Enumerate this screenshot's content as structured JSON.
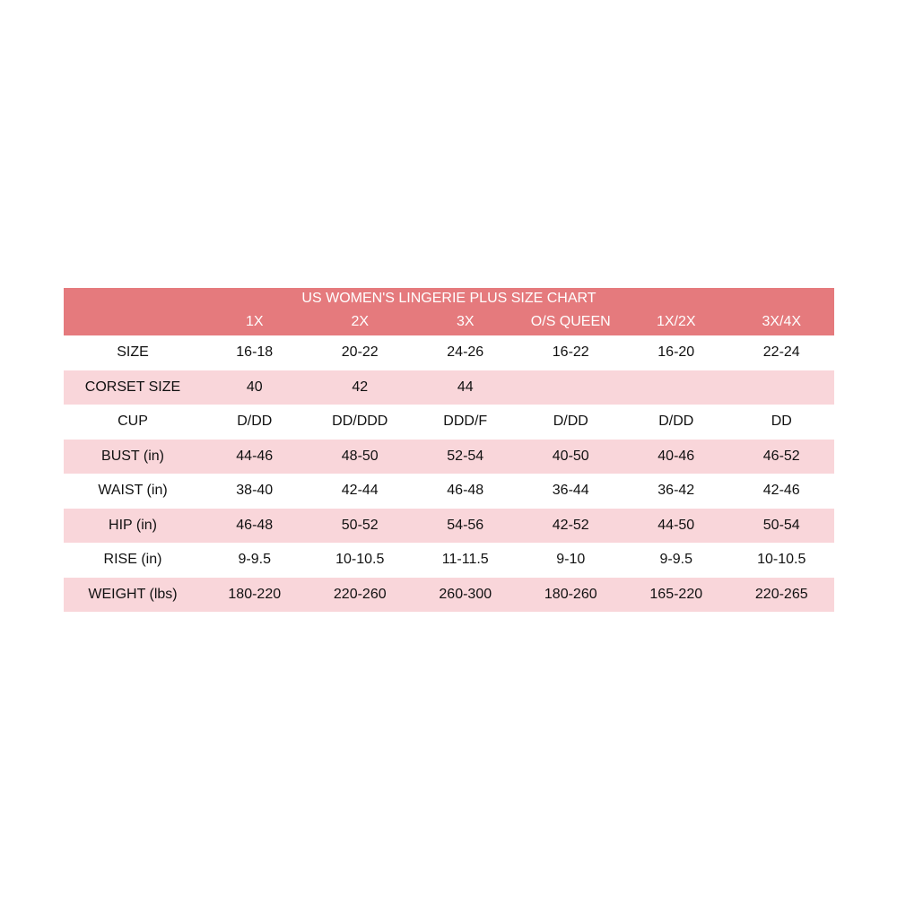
{
  "title": "US WOMEN'S LINGERIE PLUS SIZE CHART",
  "columns": [
    "1X",
    "2X",
    "3X",
    "O/S QUEEN",
    "1X/2X",
    "3X/4X"
  ],
  "rows": [
    {
      "label": "SIZE",
      "values": [
        "16-18",
        "20-22",
        "24-26",
        "16-22",
        "16-20",
        "22-24"
      ]
    },
    {
      "label": "CORSET SIZE",
      "values": [
        "40",
        "42",
        "44",
        "",
        "",
        ""
      ]
    },
    {
      "label": "CUP",
      "values": [
        "D/DD",
        "DD/DDD",
        "DDD/F",
        "D/DD",
        "D/DD",
        "DD"
      ]
    },
    {
      "label": "BUST (in)",
      "values": [
        "44-46",
        "48-50",
        "52-54",
        "40-50",
        "40-46",
        "46-52"
      ]
    },
    {
      "label": "WAIST (in)",
      "values": [
        "38-40",
        "42-44",
        "46-48",
        "36-44",
        "36-42",
        "42-46"
      ]
    },
    {
      "label": "HIP (in)",
      "values": [
        "46-48",
        "50-52",
        "54-56",
        "42-52",
        "44-50",
        "50-54"
      ]
    },
    {
      "label": "RISE (in)",
      "values": [
        "9-9.5",
        "10-10.5",
        "11-11.5",
        "9-10",
        "9-9.5",
        "10-10.5"
      ]
    },
    {
      "label": "WEIGHT (lbs)",
      "values": [
        "180-220",
        "220-260",
        "260-300",
        "180-260",
        "165-220",
        "220-265"
      ]
    }
  ],
  "colors": {
    "header": "#e57a7d",
    "alt_row": "#f9d6da"
  }
}
